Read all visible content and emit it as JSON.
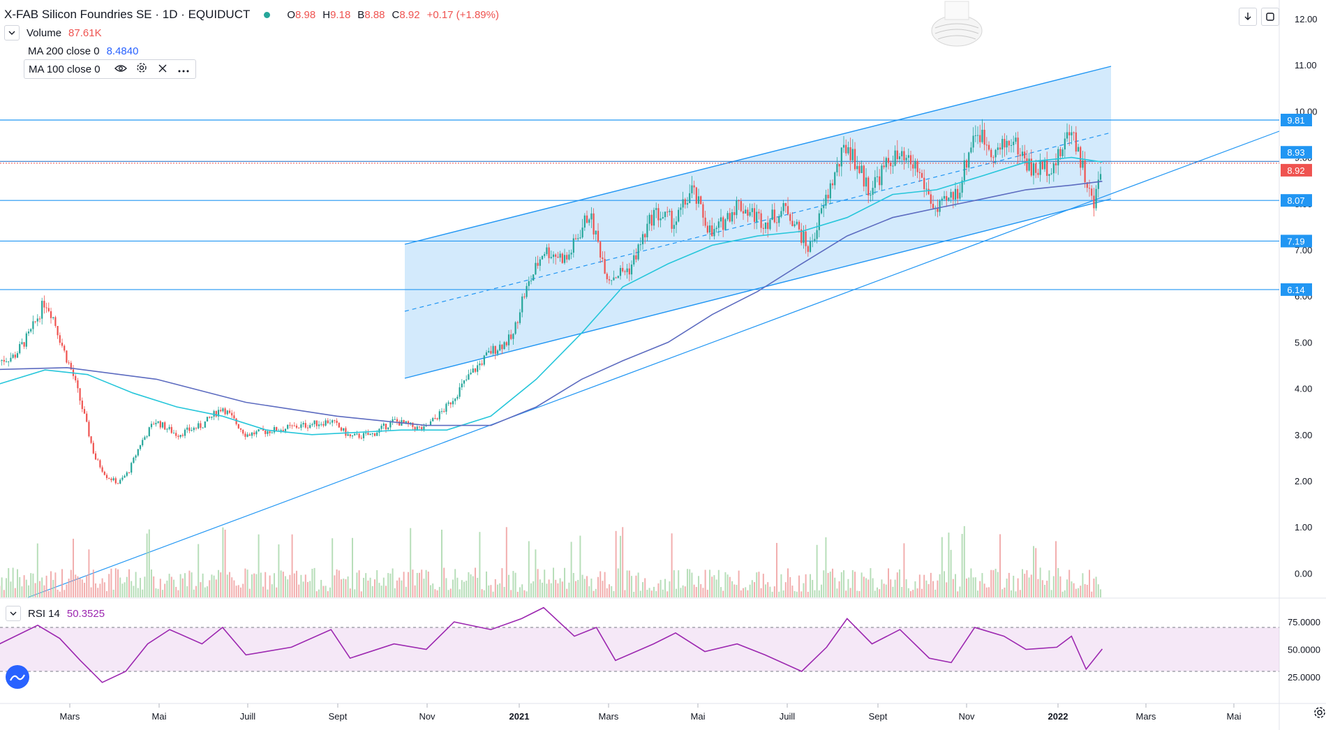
{
  "header": {
    "title": "X-FAB Silicon Foundries SE · 1D · EQUIDUCT",
    "status_color": "#26a69a",
    "ohlc": [
      {
        "key": "O",
        "value": "8.98"
      },
      {
        "key": "H",
        "value": "9.18"
      },
      {
        "key": "B",
        "value": "8.88"
      },
      {
        "key": "C",
        "value": "8.92"
      }
    ],
    "change": "+0.17 (+1.89%)",
    "value_color": "#ef5350"
  },
  "indicators": {
    "volume": {
      "name": "Volume",
      "value": "87.61K",
      "color": "#ef5350"
    },
    "ma200": {
      "name": "MA 200 close 0",
      "value": "8.4840",
      "color": "#2962ff"
    },
    "ma100": {
      "name": "MA 100 close 0",
      "value": ""
    },
    "rsi": {
      "name": "RSI 14",
      "value": "50.3525",
      "color": "#9c27b0"
    }
  },
  "toolbar_icons": [
    "eye-icon",
    "gear-icon",
    "close-icon",
    "more-icon"
  ],
  "top_buttons": [
    "download-icon",
    "fullscreen-icon"
  ],
  "chart_data": {
    "type": "candlestick",
    "x_labels": [
      "Mars",
      "Mai",
      "Juill",
      "Sept",
      "Nov",
      "2021",
      "Mars",
      "Mai",
      "Juill",
      "Sept",
      "Nov",
      "2022",
      "Mars",
      "Mai"
    ],
    "y_ticks": [
      "12.00",
      "11.00",
      "10.00",
      "9.00",
      "8.00",
      "7.00",
      "6.00",
      "5.00",
      "4.00",
      "3.00",
      "2.00",
      "1.00",
      "0.00"
    ],
    "ylim": [
      0,
      12.2
    ],
    "rsi_ticks": [
      "75.0000",
      "50.0000",
      "25.0000"
    ],
    "rsi_range": [
      0,
      100
    ],
    "rsi_band": [
      30,
      70
    ],
    "price_levels": [
      {
        "value": 9.81,
        "label": "9.81",
        "color": "#2196f3"
      },
      {
        "value": 8.07,
        "label": "8.07",
        "color": "#2196f3"
      },
      {
        "value": 7.19,
        "label": "7.19",
        "color": "#2196f3"
      },
      {
        "value": 6.14,
        "label": "6.14",
        "color": "#2196f3"
      }
    ],
    "current_price": {
      "value": 8.92,
      "label": "8.92",
      "color": "#ef5350"
    },
    "reference_price": {
      "value": 8.93,
      "label": "8.93",
      "color": "#2196f3"
    },
    "series": [
      {
        "name": "Price",
        "points": [
          [
            "2020-01-15",
            4.6
          ],
          [
            "2020-01-25",
            4.7
          ],
          [
            "2020-02-05",
            5.2
          ],
          [
            "2020-02-15",
            5.9
          ],
          [
            "2020-02-20",
            5.6
          ],
          [
            "2020-02-28",
            4.8
          ],
          [
            "2020-03-05",
            4.3
          ],
          [
            "2020-03-12",
            3.5
          ],
          [
            "2020-03-20",
            2.5
          ],
          [
            "2020-03-28",
            2.1
          ],
          [
            "2020-04-05",
            1.95
          ],
          [
            "2020-04-12",
            2.2
          ],
          [
            "2020-04-20",
            2.8
          ],
          [
            "2020-04-30",
            3.3
          ],
          [
            "2020-05-15",
            3.0
          ],
          [
            "2020-06-01",
            3.2
          ],
          [
            "2020-06-15",
            3.6
          ],
          [
            "2020-07-01",
            3.0
          ],
          [
            "2020-07-20",
            3.1
          ],
          [
            "2020-08-10",
            3.2
          ],
          [
            "2020-08-28",
            3.3
          ],
          [
            "2020-09-10",
            2.95
          ],
          [
            "2020-09-25",
            3.0
          ],
          [
            "2020-10-10",
            3.3
          ],
          [
            "2020-10-30",
            3.1
          ],
          [
            "2020-11-15",
            3.6
          ],
          [
            "2020-12-01",
            4.3
          ],
          [
            "2020-12-15",
            4.8
          ],
          [
            "2020-12-30",
            5.1
          ],
          [
            "2021-01-05",
            5.9
          ],
          [
            "2021-01-20",
            7.0
          ],
          [
            "2021-02-05",
            6.8
          ],
          [
            "2021-02-20",
            7.8
          ],
          [
            "2021-03-05",
            6.4
          ],
          [
            "2021-03-20",
            6.6
          ],
          [
            "2021-04-05",
            7.8
          ],
          [
            "2021-04-20",
            7.6
          ],
          [
            "2021-05-01",
            8.3
          ],
          [
            "2021-05-15",
            7.3
          ],
          [
            "2021-06-01",
            8.0
          ],
          [
            "2021-06-20",
            7.6
          ],
          [
            "2021-07-05",
            7.9
          ],
          [
            "2021-07-20",
            7.0
          ],
          [
            "2021-08-05",
            8.5
          ],
          [
            "2021-08-15",
            9.3
          ],
          [
            "2021-08-30",
            8.3
          ],
          [
            "2021-09-15",
            9.0
          ],
          [
            "2021-10-01",
            8.8
          ],
          [
            "2021-10-15",
            7.8
          ],
          [
            "2021-10-30",
            8.3
          ],
          [
            "2021-11-10",
            9.6
          ],
          [
            "2021-11-25",
            9.1
          ],
          [
            "2021-12-05",
            9.4
          ],
          [
            "2021-12-20",
            8.7
          ],
          [
            "2022-01-05",
            8.9
          ],
          [
            "2022-01-15",
            9.7
          ],
          [
            "2022-01-25",
            8.5
          ],
          [
            "2022-01-30",
            7.9
          ],
          [
            "2022-02-05",
            8.92
          ]
        ]
      },
      {
        "name": "MA 100",
        "color": "#26c6da",
        "points": [
          [
            "2020-01-15",
            4.1
          ],
          [
            "2020-02-15",
            4.4
          ],
          [
            "2020-03-15",
            4.3
          ],
          [
            "2020-04-15",
            3.9
          ],
          [
            "2020-05-15",
            3.6
          ],
          [
            "2020-06-15",
            3.4
          ],
          [
            "2020-07-15",
            3.1
          ],
          [
            "2020-08-15",
            3.0
          ],
          [
            "2020-09-15",
            3.05
          ],
          [
            "2020-10-15",
            3.1
          ],
          [
            "2020-11-15",
            3.1
          ],
          [
            "2020-12-15",
            3.4
          ],
          [
            "2021-01-15",
            4.2
          ],
          [
            "2021-02-15",
            5.2
          ],
          [
            "2021-03-15",
            6.2
          ],
          [
            "2021-04-15",
            6.7
          ],
          [
            "2021-05-15",
            7.1
          ],
          [
            "2021-06-15",
            7.3
          ],
          [
            "2021-07-15",
            7.4
          ],
          [
            "2021-08-15",
            7.7
          ],
          [
            "2021-09-15",
            8.2
          ],
          [
            "2021-10-15",
            8.3
          ],
          [
            "2021-11-15",
            8.6
          ],
          [
            "2021-12-15",
            8.9
          ],
          [
            "2022-01-15",
            9.0
          ],
          [
            "2022-02-05",
            8.9
          ]
        ]
      },
      {
        "name": "MA 200",
        "color": "#5c6bc0",
        "points": [
          [
            "2020-01-01",
            4.4
          ],
          [
            "2020-03-01",
            4.45
          ],
          [
            "2020-05-01",
            4.2
          ],
          [
            "2020-07-01",
            3.7
          ],
          [
            "2020-09-01",
            3.4
          ],
          [
            "2020-11-01",
            3.2
          ],
          [
            "2020-12-15",
            3.2
          ],
          [
            "2021-01-15",
            3.6
          ],
          [
            "2021-02-15",
            4.2
          ],
          [
            "2021-03-15",
            4.6
          ],
          [
            "2021-04-15",
            5.0
          ],
          [
            "2021-05-15",
            5.6
          ],
          [
            "2021-06-15",
            6.1
          ],
          [
            "2021-07-15",
            6.7
          ],
          [
            "2021-08-15",
            7.3
          ],
          [
            "2021-09-15",
            7.7
          ],
          [
            "2021-10-15",
            7.9
          ],
          [
            "2021-11-15",
            8.1
          ],
          [
            "2021-12-15",
            8.3
          ],
          [
            "2022-01-15",
            8.4
          ],
          [
            "2022-02-05",
            8.484
          ]
        ]
      },
      {
        "name": "RSI",
        "color": "#9c27b0",
        "points": [
          [
            "2020-01-15",
            55
          ],
          [
            "2020-02-10",
            72
          ],
          [
            "2020-02-25",
            60
          ],
          [
            "2020-03-10",
            40
          ],
          [
            "2020-03-25",
            20
          ],
          [
            "2020-04-10",
            30
          ],
          [
            "2020-04-25",
            55
          ],
          [
            "2020-05-10",
            68
          ],
          [
            "2020-06-01",
            55
          ],
          [
            "2020-06-15",
            70
          ],
          [
            "2020-07-01",
            45
          ],
          [
            "2020-08-01",
            52
          ],
          [
            "2020-08-28",
            68
          ],
          [
            "2020-09-10",
            42
          ],
          [
            "2020-10-10",
            55
          ],
          [
            "2020-11-01",
            50
          ],
          [
            "2020-11-20",
            75
          ],
          [
            "2020-12-15",
            68
          ],
          [
            "2021-01-05",
            78
          ],
          [
            "2021-01-20",
            88
          ],
          [
            "2021-02-10",
            62
          ],
          [
            "2021-02-25",
            70
          ],
          [
            "2021-03-10",
            40
          ],
          [
            "2021-04-05",
            55
          ],
          [
            "2021-04-20",
            65
          ],
          [
            "2021-05-10",
            48
          ],
          [
            "2021-06-01",
            55
          ],
          [
            "2021-06-20",
            45
          ],
          [
            "2021-07-15",
            30
          ],
          [
            "2021-08-01",
            52
          ],
          [
            "2021-08-15",
            78
          ],
          [
            "2021-09-01",
            55
          ],
          [
            "2021-09-20",
            68
          ],
          [
            "2021-10-10",
            42
          ],
          [
            "2021-10-25",
            38
          ],
          [
            "2021-11-10",
            70
          ],
          [
            "2021-11-30",
            62
          ],
          [
            "2021-12-15",
            50
          ],
          [
            "2022-01-05",
            52
          ],
          [
            "2022-01-15",
            62
          ],
          [
            "2022-01-25",
            32
          ],
          [
            "2022-02-05",
            50.35
          ]
        ]
      }
    ],
    "volume_color_up": "#a5d6a7",
    "volume_color_down": "#ef9a9a"
  }
}
